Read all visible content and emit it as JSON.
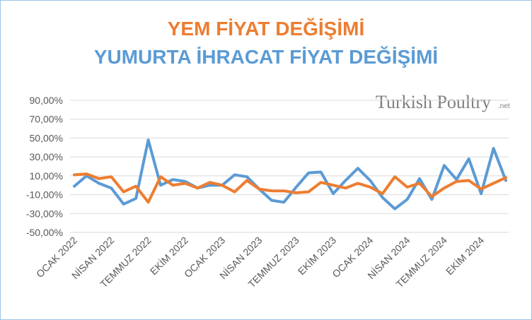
{
  "chart_data": {
    "type": "line",
    "logo": "Turkish Poultry",
    "logo_suffix": ".net",
    "categories": [
      "OCAK 2022",
      null,
      null,
      "NİSAN 2022",
      null,
      null,
      "TEMMUZ 2022",
      null,
      null,
      "EKİM 2022",
      null,
      null,
      "OCAK 2023",
      null,
      null,
      "NİSAN 2023",
      null,
      null,
      "TEMMUZ 2023",
      null,
      null,
      "EKİM 2023",
      null,
      null,
      "OCAK 2024",
      null,
      null,
      "NİSAN 2024",
      null,
      null,
      "TEMMUZ 2024",
      null,
      null,
      "EKİM 2024",
      null,
      null
    ],
    "series": [
      {
        "name": "YEM FİYAT DEĞİŞİMİ",
        "color": "#ed7d31",
        "values": [
          11,
          12,
          7,
          9,
          -7,
          -1,
          -18,
          9,
          0,
          2,
          -3,
          3,
          0,
          -7,
          5,
          -4,
          -6,
          -6,
          -8,
          -7,
          3,
          0,
          -3,
          2,
          -2,
          -9,
          9,
          -2,
          2,
          -12,
          -3,
          4,
          5,
          -4,
          2,
          8
        ]
      },
      {
        "name": "YUMURTA İHRACAT FİYAT DEĞİŞİMİ",
        "color": "#5b9bd5",
        "values": [
          -1,
          10,
          2,
          -3,
          -20,
          -14,
          48,
          0,
          6,
          4,
          -3,
          0,
          0,
          11,
          9,
          -4,
          -16,
          -18,
          -2,
          13,
          14,
          -9,
          5,
          18,
          5,
          -13,
          -25,
          -15,
          7,
          -15,
          21,
          6,
          28,
          -9,
          39,
          5
        ]
      }
    ],
    "ylim": [
      -50,
      90
    ],
    "yticks": [
      {
        "value": -50,
        "label": "-50,00%"
      },
      {
        "value": -30,
        "label": "-30,00%"
      },
      {
        "value": -10,
        "label": "-10,00%"
      },
      {
        "value": 10,
        "label": "10,00%"
      },
      {
        "value": 30,
        "label": "30,00%"
      },
      {
        "value": 50,
        "label": "50,00%"
      },
      {
        "value": 70,
        "label": "70,00%"
      },
      {
        "value": 90,
        "label": "90,00%"
      }
    ],
    "grid": true
  }
}
